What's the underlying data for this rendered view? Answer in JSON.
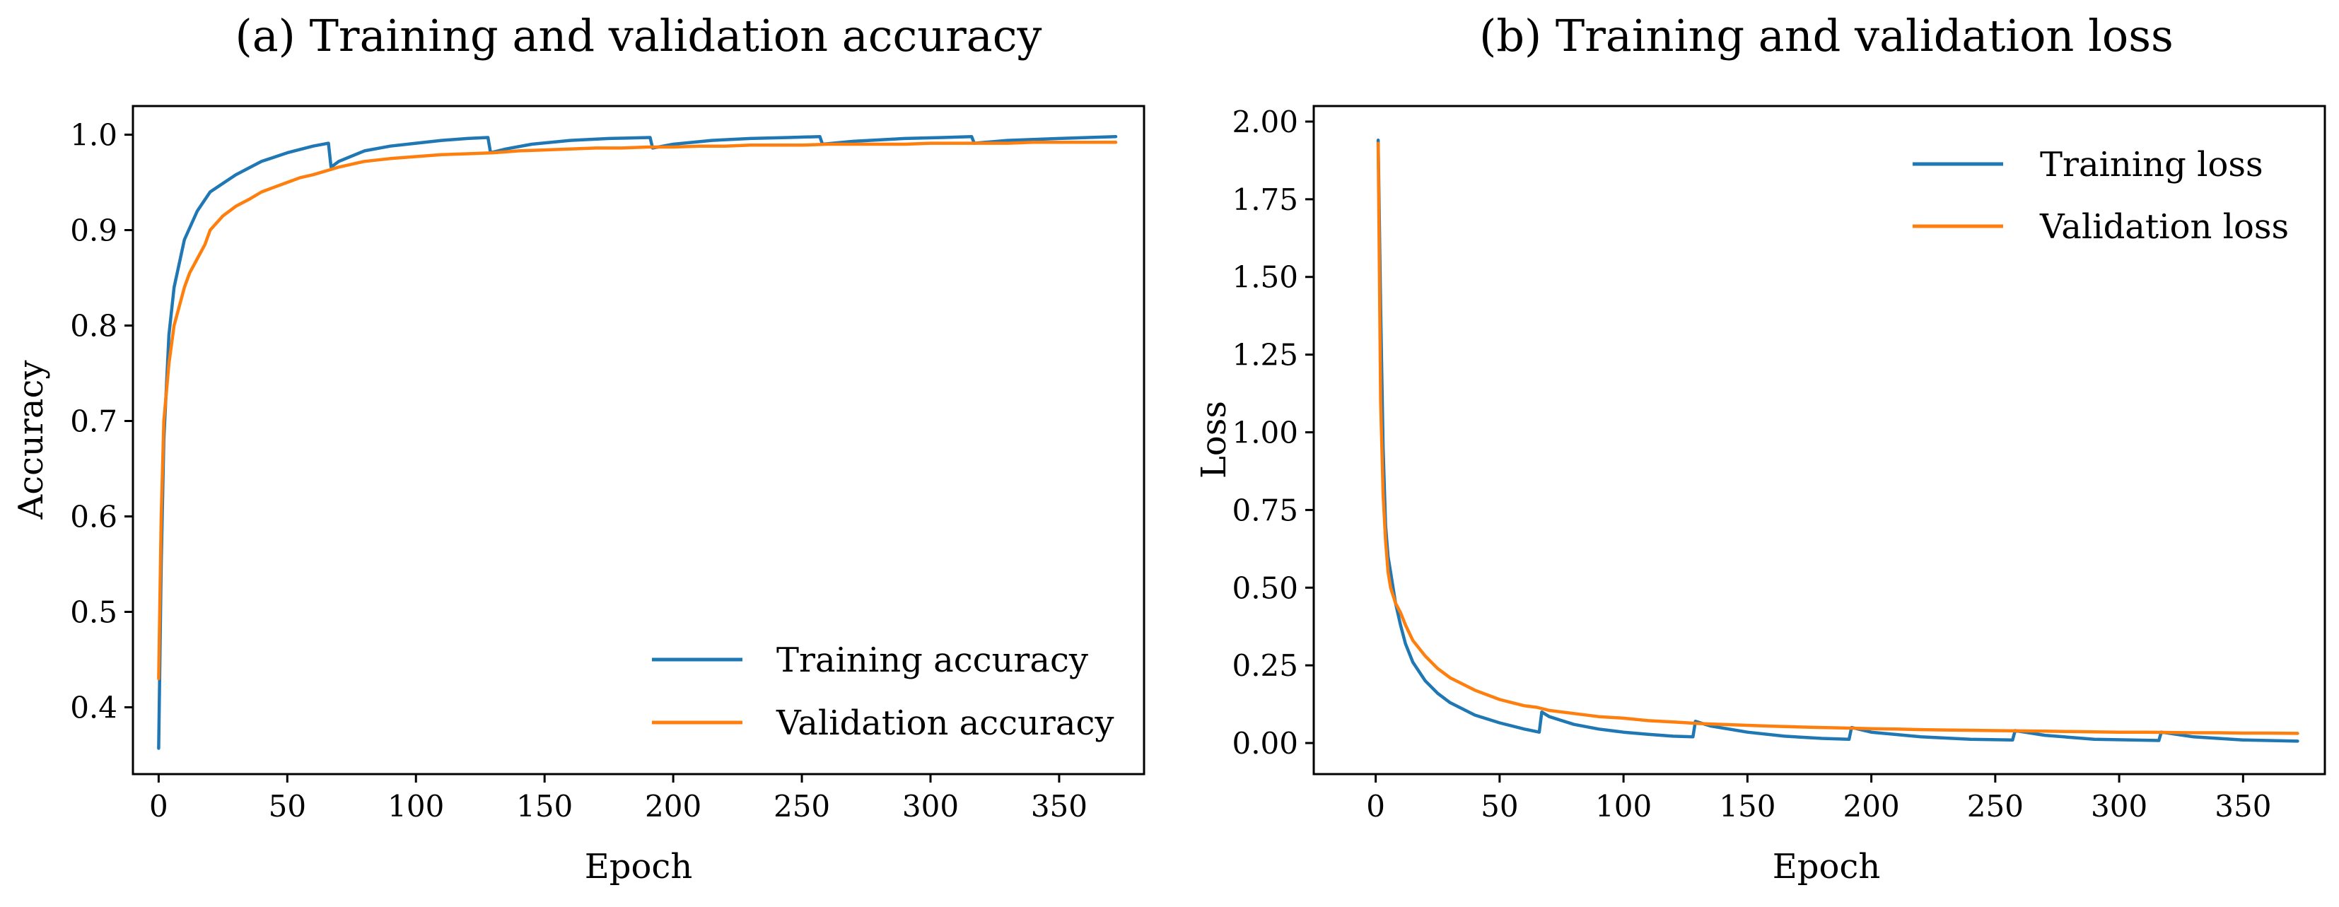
{
  "chart_data": [
    {
      "type": "line",
      "title": "(a) Training and validation accuracy",
      "xlabel": "Epoch",
      "ylabel": "Accuracy",
      "xlim": [
        -10,
        383
      ],
      "ylim": [
        0.33,
        1.03
      ],
      "xticks": [
        0,
        50,
        100,
        150,
        200,
        250,
        300,
        350
      ],
      "yticks": [
        0.4,
        0.5,
        0.6,
        0.7,
        0.8,
        0.9,
        1.0
      ],
      "ytick_labels": [
        "0.4",
        "0.5",
        "0.6",
        "0.7",
        "0.8",
        "0.9",
        "1.0"
      ],
      "legend_position": "lower-right",
      "series": [
        {
          "name": "Training accuracy",
          "color": "#1f77b4",
          "x": [
            0,
            1,
            2,
            4,
            6,
            10,
            15,
            20,
            30,
            40,
            50,
            60,
            66,
            67,
            70,
            80,
            90,
            100,
            110,
            120,
            128,
            129,
            135,
            145,
            160,
            175,
            191,
            192,
            200,
            215,
            230,
            245,
            257,
            258,
            270,
            290,
            305,
            316,
            317,
            330,
            350,
            372
          ],
          "values": [
            0.357,
            0.55,
            0.68,
            0.79,
            0.84,
            0.89,
            0.92,
            0.94,
            0.958,
            0.972,
            0.981,
            0.988,
            0.991,
            0.966,
            0.972,
            0.983,
            0.988,
            0.991,
            0.994,
            0.996,
            0.997,
            0.981,
            0.985,
            0.99,
            0.994,
            0.996,
            0.997,
            0.986,
            0.99,
            0.994,
            0.996,
            0.997,
            0.998,
            0.99,
            0.993,
            0.996,
            0.997,
            0.998,
            0.991,
            0.994,
            0.996,
            0.998
          ]
        },
        {
          "name": "Validation accuracy",
          "color": "#ff7f0e",
          "x": [
            0,
            1,
            2,
            4,
            6,
            8,
            10,
            12,
            15,
            18,
            20,
            25,
            30,
            35,
            40,
            45,
            50,
            55,
            60,
            65,
            70,
            75,
            80,
            90,
            100,
            110,
            120,
            130,
            140,
            150,
            160,
            170,
            180,
            190,
            200,
            210,
            220,
            230,
            240,
            250,
            260,
            270,
            280,
            290,
            300,
            310,
            320,
            330,
            340,
            350,
            360,
            372
          ],
          "values": [
            0.43,
            0.6,
            0.7,
            0.76,
            0.8,
            0.82,
            0.84,
            0.855,
            0.87,
            0.885,
            0.9,
            0.915,
            0.925,
            0.932,
            0.94,
            0.945,
            0.95,
            0.955,
            0.958,
            0.962,
            0.966,
            0.969,
            0.972,
            0.975,
            0.977,
            0.979,
            0.98,
            0.981,
            0.983,
            0.984,
            0.985,
            0.986,
            0.986,
            0.987,
            0.987,
            0.988,
            0.988,
            0.989,
            0.989,
            0.989,
            0.99,
            0.99,
            0.99,
            0.99,
            0.991,
            0.991,
            0.991,
            0.991,
            0.992,
            0.992,
            0.992,
            0.992
          ]
        }
      ]
    },
    {
      "type": "line",
      "title": "(b) Training and validation loss",
      "xlabel": "Epoch",
      "ylabel": "Loss",
      "xlim": [
        -25,
        383
      ],
      "ylim": [
        -0.1,
        2.05
      ],
      "xticks": [
        0,
        50,
        100,
        150,
        200,
        250,
        300,
        350
      ],
      "yticks": [
        0.0,
        0.25,
        0.5,
        0.75,
        1.0,
        1.25,
        1.5,
        1.75,
        2.0
      ],
      "ytick_labels": [
        "0.00",
        "0.25",
        "0.50",
        "0.75",
        "1.00",
        "1.25",
        "1.50",
        "1.75",
        "2.00"
      ],
      "legend_position": "upper-right",
      "series": [
        {
          "name": "Training loss",
          "color": "#1f77b4",
          "x": [
            1,
            2,
            3,
            4,
            5,
            6,
            8,
            10,
            12,
            15,
            20,
            25,
            30,
            40,
            50,
            60,
            66,
            67,
            70,
            80,
            90,
            100,
            110,
            120,
            128,
            129,
            135,
            150,
            165,
            180,
            191,
            192,
            200,
            220,
            240,
            257,
            258,
            270,
            290,
            316,
            317,
            330,
            350,
            372
          ],
          "values": [
            1.94,
            1.4,
            0.95,
            0.7,
            0.6,
            0.55,
            0.45,
            0.38,
            0.32,
            0.26,
            0.2,
            0.16,
            0.13,
            0.09,
            0.065,
            0.045,
            0.035,
            0.1,
            0.085,
            0.06,
            0.045,
            0.035,
            0.028,
            0.022,
            0.02,
            0.07,
            0.055,
            0.035,
            0.022,
            0.015,
            0.012,
            0.05,
            0.035,
            0.02,
            0.012,
            0.01,
            0.04,
            0.025,
            0.012,
            0.008,
            0.035,
            0.02,
            0.01,
            0.006
          ]
        },
        {
          "name": "Validation loss",
          "color": "#ff7f0e",
          "x": [
            1,
            2,
            3,
            4,
            5,
            6,
            8,
            10,
            12,
            15,
            20,
            25,
            30,
            35,
            40,
            45,
            50,
            55,
            60,
            65,
            70,
            80,
            90,
            100,
            110,
            120,
            130,
            140,
            150,
            160,
            170,
            180,
            190,
            200,
            210,
            220,
            230,
            240,
            250,
            260,
            270,
            280,
            290,
            300,
            310,
            320,
            330,
            340,
            350,
            360,
            372
          ],
          "values": [
            1.93,
            1.1,
            0.8,
            0.65,
            0.55,
            0.5,
            0.45,
            0.42,
            0.38,
            0.33,
            0.28,
            0.24,
            0.21,
            0.19,
            0.17,
            0.155,
            0.14,
            0.13,
            0.12,
            0.115,
            0.105,
            0.095,
            0.085,
            0.08,
            0.072,
            0.068,
            0.063,
            0.06,
            0.057,
            0.054,
            0.052,
            0.05,
            0.048,
            0.046,
            0.045,
            0.043,
            0.042,
            0.041,
            0.04,
            0.039,
            0.038,
            0.037,
            0.036,
            0.035,
            0.035,
            0.034,
            0.033,
            0.033,
            0.032,
            0.032,
            0.031
          ]
        }
      ]
    }
  ]
}
